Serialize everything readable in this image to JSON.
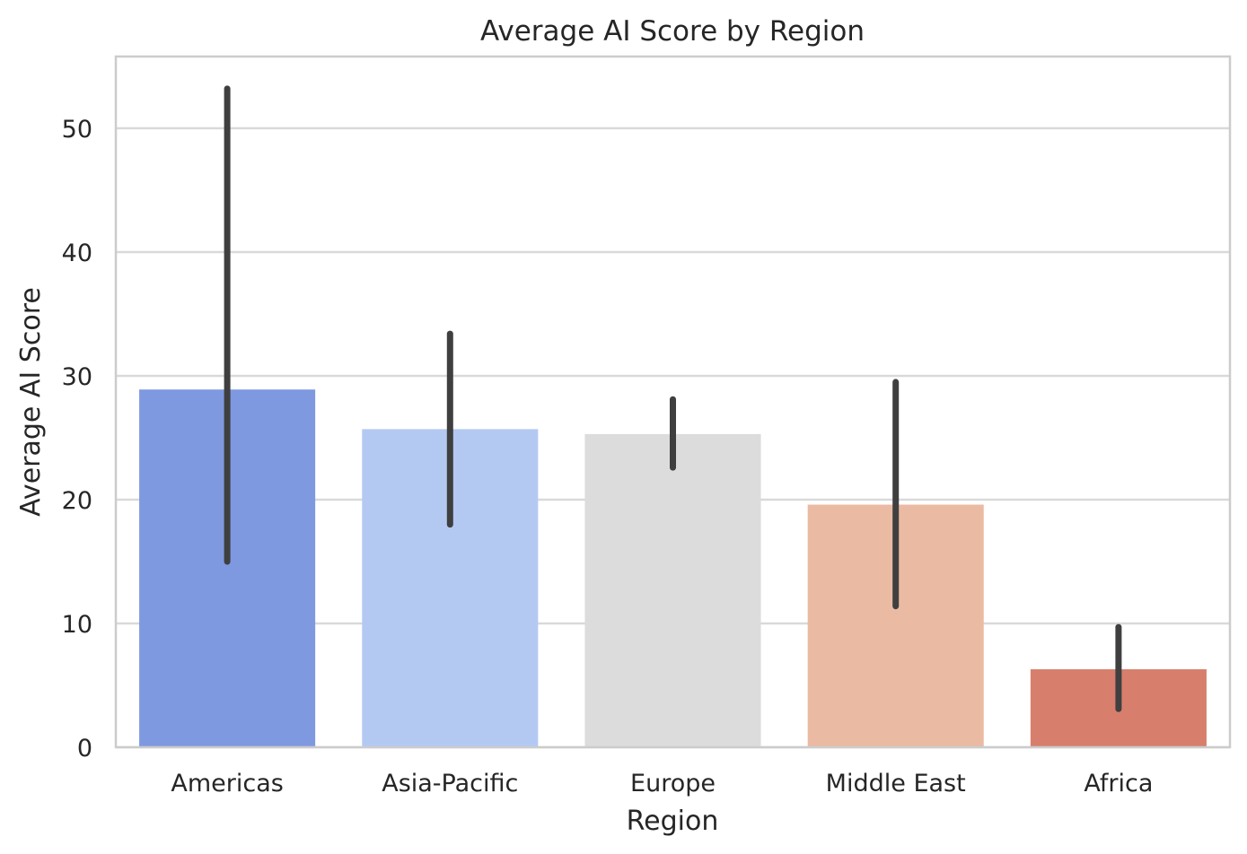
{
  "chart_data": {
    "type": "bar",
    "title": "Average AI Score by Region",
    "xlabel": "Region",
    "ylabel": "Average AI Score",
    "categories": [
      "Americas",
      "Asia-Pacific",
      "Europe",
      "Middle East",
      "Africa"
    ],
    "values": [
      28.9,
      25.7,
      25.3,
      19.6,
      6.3
    ],
    "error_bars": [
      {
        "low": 15.0,
        "high": 53.2
      },
      {
        "low": 18.0,
        "high": 33.4
      },
      {
        "low": 22.6,
        "high": 28.1
      },
      {
        "low": 11.4,
        "high": 29.5
      },
      {
        "low": 3.1,
        "high": 9.7
      }
    ],
    "colors": [
      "#7f99e1",
      "#b4c9f2",
      "#dcdcdc",
      "#ebbaa3",
      "#d77f6c"
    ],
    "ylim": [
      0,
      55.8
    ],
    "yticks": [
      0,
      10,
      20,
      30,
      40,
      50
    ],
    "grid": true,
    "legend": "none"
  }
}
